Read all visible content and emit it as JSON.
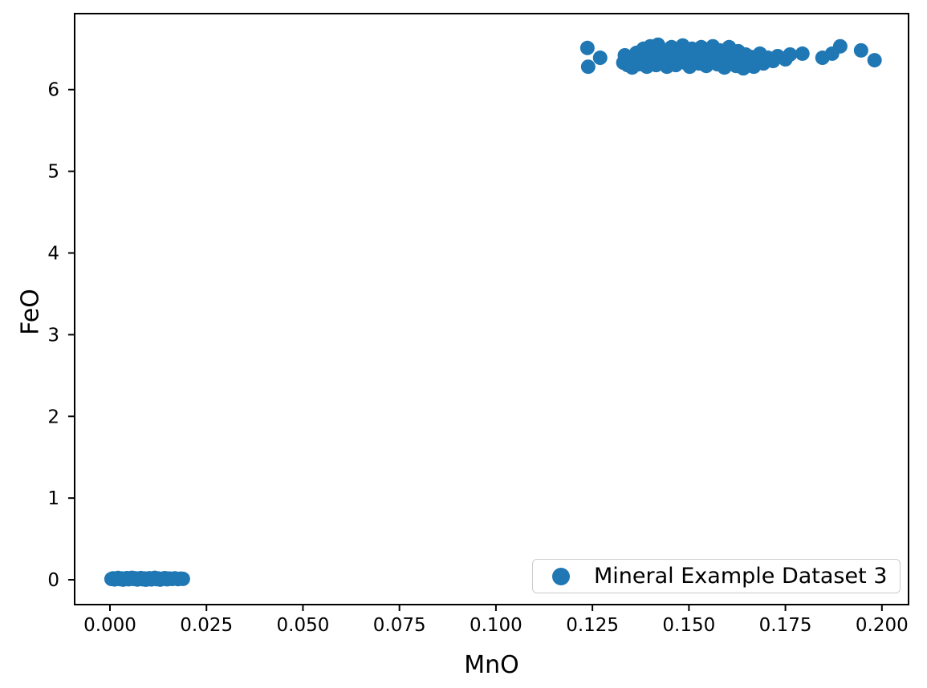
{
  "chart_data": {
    "type": "scatter",
    "title": "",
    "xlabel": "MnO",
    "ylabel": "FeO",
    "xlim": [
      -0.00915,
      0.2069
    ],
    "ylim": [
      -0.304,
      6.93
    ],
    "grid": false,
    "xticks": {
      "values": [
        0.0,
        0.025,
        0.05,
        0.075,
        0.1,
        0.125,
        0.15,
        0.175,
        0.2
      ],
      "labels": [
        "0.000",
        "0.025",
        "0.050",
        "0.075",
        "0.100",
        "0.125",
        "0.150",
        "0.175",
        "0.200"
      ]
    },
    "yticks": {
      "values": [
        0,
        1,
        2,
        3,
        4,
        5,
        6
      ],
      "labels": [
        "0",
        "1",
        "2",
        "3",
        "4",
        "5",
        "6"
      ]
    },
    "marker": {
      "color": "#1f77b4",
      "radius_px": 9
    },
    "legend": {
      "position": "lower right",
      "entries": [
        "Mineral Example Dataset 3"
      ]
    },
    "series": [
      {
        "name": "Mineral Example Dataset 3",
        "points": [
          [
            0.0004,
            0.01
          ],
          [
            0.0008,
            0.018
          ],
          [
            0.0012,
            0.004
          ],
          [
            0.0016,
            0.014
          ],
          [
            0.0021,
            0.022
          ],
          [
            0.0026,
            0.008
          ],
          [
            0.003,
            0.016
          ],
          [
            0.0034,
            0.002
          ],
          [
            0.0039,
            0.012
          ],
          [
            0.0044,
            0.02
          ],
          [
            0.0048,
            0.006
          ],
          [
            0.0053,
            0.015
          ],
          [
            0.0057,
            0.024
          ],
          [
            0.0062,
            0.009
          ],
          [
            0.0066,
            0.017
          ],
          [
            0.0071,
            0.003
          ],
          [
            0.0075,
            0.013
          ],
          [
            0.008,
            0.021
          ],
          [
            0.0084,
            0.007
          ],
          [
            0.0089,
            0.016
          ],
          [
            0.0093,
            0.001
          ],
          [
            0.0098,
            0.011
          ],
          [
            0.0102,
            0.019
          ],
          [
            0.0107,
            0.005
          ],
          [
            0.0111,
            0.014
          ],
          [
            0.0116,
            0.023
          ],
          [
            0.012,
            0.008
          ],
          [
            0.0125,
            0.016
          ],
          [
            0.013,
            0.002
          ],
          [
            0.0136,
            0.012
          ],
          [
            0.0142,
            0.02
          ],
          [
            0.0148,
            0.006
          ],
          [
            0.0154,
            0.015
          ],
          [
            0.0161,
            0.01
          ],
          [
            0.0168,
            0.018
          ],
          [
            0.0176,
            0.008
          ],
          [
            0.0183,
            0.014
          ],
          [
            0.0189,
            0.011
          ],
          [
            0.1237,
            6.51
          ],
          [
            0.127,
            6.39
          ],
          [
            0.1239,
            6.28
          ],
          [
            0.133,
            6.33
          ],
          [
            0.1334,
            6.42
          ],
          [
            0.1341,
            6.3
          ],
          [
            0.1348,
            6.38
          ],
          [
            0.1353,
            6.27
          ],
          [
            0.136,
            6.35
          ],
          [
            0.1364,
            6.45
          ],
          [
            0.137,
            6.31
          ],
          [
            0.1376,
            6.4
          ],
          [
            0.1382,
            6.5
          ],
          [
            0.1386,
            6.36
          ],
          [
            0.1391,
            6.28
          ],
          [
            0.1396,
            6.44
          ],
          [
            0.14,
            6.53
          ],
          [
            0.1405,
            6.35
          ],
          [
            0.141,
            6.47
          ],
          [
            0.1415,
            6.3
          ],
          [
            0.142,
            6.55
          ],
          [
            0.1426,
            6.4
          ],
          [
            0.1432,
            6.33
          ],
          [
            0.1438,
            6.48
          ],
          [
            0.1443,
            6.28
          ],
          [
            0.145,
            6.43
          ],
          [
            0.1455,
            6.52
          ],
          [
            0.1461,
            6.36
          ],
          [
            0.1466,
            6.3
          ],
          [
            0.1472,
            6.46
          ],
          [
            0.1478,
            6.39
          ],
          [
            0.1484,
            6.54
          ],
          [
            0.149,
            6.33
          ],
          [
            0.1496,
            6.44
          ],
          [
            0.1502,
            6.28
          ],
          [
            0.1508,
            6.5
          ],
          [
            0.1514,
            6.38
          ],
          [
            0.152,
            6.45
          ],
          [
            0.1526,
            6.32
          ],
          [
            0.1532,
            6.52
          ],
          [
            0.1538,
            6.41
          ],
          [
            0.1545,
            6.29
          ],
          [
            0.1551,
            6.47
          ],
          [
            0.1556,
            6.36
          ],
          [
            0.1562,
            6.53
          ],
          [
            0.1568,
            6.42
          ],
          [
            0.1574,
            6.31
          ],
          [
            0.158,
            6.48
          ],
          [
            0.1586,
            6.38
          ],
          [
            0.1592,
            6.27
          ],
          [
            0.1598,
            6.45
          ],
          [
            0.1604,
            6.52
          ],
          [
            0.161,
            6.34
          ],
          [
            0.1616,
            6.42
          ],
          [
            0.1622,
            6.29
          ],
          [
            0.1628,
            6.47
          ],
          [
            0.1634,
            6.37
          ],
          [
            0.1641,
            6.26
          ],
          [
            0.1647,
            6.43
          ],
          [
            0.1654,
            6.33
          ],
          [
            0.166,
            6.4
          ],
          [
            0.1668,
            6.28
          ],
          [
            0.1676,
            6.36
          ],
          [
            0.1684,
            6.44
          ],
          [
            0.1693,
            6.32
          ],
          [
            0.1705,
            6.39
          ],
          [
            0.1718,
            6.35
          ],
          [
            0.173,
            6.41
          ],
          [
            0.175,
            6.37
          ],
          [
            0.1762,
            6.43
          ],
          [
            0.1794,
            6.44
          ],
          [
            0.1846,
            6.39
          ],
          [
            0.1871,
            6.44
          ],
          [
            0.1892,
            6.53
          ],
          [
            0.1946,
            6.48
          ],
          [
            0.1981,
            6.36
          ]
        ]
      }
    ]
  }
}
